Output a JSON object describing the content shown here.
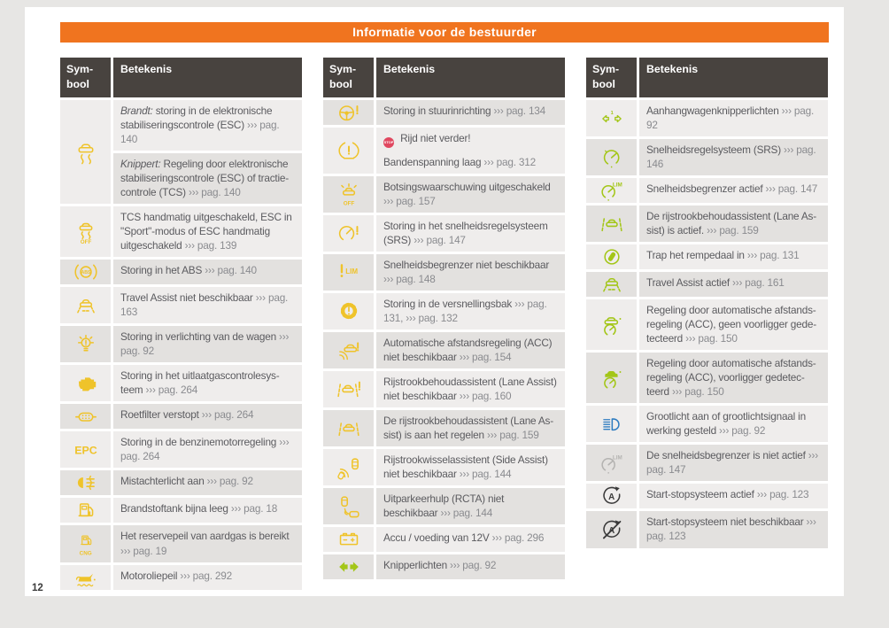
{
  "page": {
    "title": "Informatie voor de bestuurder",
    "page_number": "12",
    "stop_badge_label": "STOP",
    "colors": {
      "accent": "#f0741f",
      "header": "#48433f",
      "warn": "#efc32a",
      "green": "#a3c618",
      "blue": "#2e7cc0",
      "gray": "#b4b3b1",
      "dark": "#3a3a3a",
      "stop_red": "#e0475f",
      "row_light": "#efedec",
      "row_dark": "#e3e1df",
      "text": "#5b5b5f",
      "ref": "#8a8b8f"
    }
  },
  "tables": [
    {
      "headers": {
        "symbol": "Sym-bool",
        "meaning": "Betekenis"
      },
      "rows": [
        {
          "icon": "esc",
          "color": "warn",
          "cells": [
            [
              [
                {
                  "k": "i",
                  "t": "Brandt:"
                },
                {
                  "k": "n",
                  "t": " storing in de elektronische stabi­liseringscontrole (ESC) "
                },
                {
                  "k": "r",
                  "t": "››› pag. 140"
                }
              ]
            ],
            [
              [
                {
                  "k": "i",
                  "t": "Knippert:"
                },
                {
                  "k": "n",
                  "t": " Regeling door elektronische stabiliseringscontrole (ESC) of tractie­controle (TCS) "
                },
                {
                  "k": "r",
                  "t": "››› pag. 140"
                }
              ]
            ]
          ]
        },
        {
          "icon": "esc-off",
          "color": "warn",
          "cells": [
            [
              [
                {
                  "k": "n",
                  "t": "TCS handmatig uitgeschakeld, ESC in \"Sport\"-modus of ESC handmatig uitge­schakeld "
                },
                {
                  "k": "r",
                  "t": "››› pag. 139"
                }
              ]
            ]
          ]
        },
        {
          "icon": "abs",
          "color": "warn",
          "cells": [
            [
              [
                {
                  "k": "n",
                  "t": "Storing in het ABS "
                },
                {
                  "k": "r",
                  "t": "››› pag. 140"
                }
              ]
            ]
          ]
        },
        {
          "icon": "travel-assist",
          "color": "warn",
          "cells": [
            [
              [
                {
                  "k": "n",
                  "t": "Travel Assist niet beschikbaar "
                },
                {
                  "k": "r",
                  "t": "››› pag. 163"
                }
              ]
            ]
          ]
        },
        {
          "icon": "bulb-fault",
          "color": "warn",
          "cells": [
            [
              [
                {
                  "k": "n",
                  "t": "Storing in verlichting van de wagen "
                },
                {
                  "k": "r",
                  "t": "››› pag. 92"
                }
              ]
            ]
          ]
        },
        {
          "icon": "engine",
          "color": "warn",
          "cells": [
            [
              [
                {
                  "k": "n",
                  "t": "Storing in het uitlaatgascontrolesys­teem "
                },
                {
                  "k": "r",
                  "t": "››› pag. 264"
                }
              ]
            ]
          ]
        },
        {
          "icon": "dpf",
          "color": "warn",
          "cells": [
            [
              [
                {
                  "k": "n",
                  "t": "Roetfilter verstopt "
                },
                {
                  "k": "r",
                  "t": "››› pag. 264"
                }
              ]
            ]
          ]
        },
        {
          "icon": "epc",
          "color": "warn",
          "cells": [
            [
              [
                {
                  "k": "n",
                  "t": "Storing in de benzinemotorregeling "
                },
                {
                  "k": "r",
                  "t": "››› pag. 264"
                }
              ]
            ]
          ]
        },
        {
          "icon": "rear-fog",
          "color": "warn",
          "cells": [
            [
              [
                {
                  "k": "n",
                  "t": "Mistachterlicht aan "
                },
                {
                  "k": "r",
                  "t": "››› pag. 92"
                }
              ]
            ]
          ]
        },
        {
          "icon": "fuel",
          "color": "warn",
          "cells": [
            [
              [
                {
                  "k": "n",
                  "t": "Brandstoftank bijna leeg "
                },
                {
                  "k": "r",
                  "t": "››› pag. 18"
                }
              ]
            ]
          ]
        },
        {
          "icon": "fuel-cng",
          "color": "warn",
          "cells": [
            [
              [
                {
                  "k": "n",
                  "t": "Het reservepeil van aardgas is bereikt "
                },
                {
                  "k": "r",
                  "t": "››› pag. 19"
                }
              ]
            ]
          ]
        },
        {
          "icon": "oil",
          "color": "warn",
          "cells": [
            [
              [
                {
                  "k": "n",
                  "t": "Motoroliepeil "
                },
                {
                  "k": "r",
                  "t": "››› pag. 292"
                }
              ]
            ]
          ]
        }
      ]
    },
    {
      "headers": {
        "symbol": "Sym-bool",
        "meaning": "Betekenis"
      },
      "rows": [
        {
          "icon": "steering-warn",
          "color": "warn",
          "cells": [
            [
              [
                {
                  "k": "n",
                  "t": "Storing in stuurinrichting "
                },
                {
                  "k": "r",
                  "t": "››› pag. 134"
                }
              ]
            ]
          ]
        },
        {
          "icon": "tpms",
          "color": "warn",
          "cells": [
            [
              [
                {
                  "k": "b",
                  "t": "STOP"
                },
                {
                  "k": "n",
                  "t": " Rijd niet verder!"
                }
              ],
              [
                {
                  "k": "n",
                  "t": "Bandenspanning laag "
                },
                {
                  "k": "r",
                  "t": "››› pag. 312"
                }
              ]
            ]
          ]
        },
        {
          "icon": "front-assist-off",
          "color": "warn",
          "cells": [
            [
              [
                {
                  "k": "n",
                  "t": "Botsingswaarschuwing uitgeschakeld "
                },
                {
                  "k": "r",
                  "t": "››› pag. 157"
                }
              ]
            ]
          ]
        },
        {
          "icon": "cruise-fault",
          "color": "warn",
          "cells": [
            [
              [
                {
                  "k": "n",
                  "t": "Storing in het snelheidsregelsysteem (SRS) "
                },
                {
                  "k": "r",
                  "t": "››› pag. 147"
                }
              ]
            ]
          ]
        },
        {
          "icon": "lim-warn",
          "color": "warn",
          "cells": [
            [
              [
                {
                  "k": "n",
                  "t": "Snelheidsbegrenzer niet beschikbaar "
                },
                {
                  "k": "r",
                  "t": "››› pag. 148"
                }
              ]
            ]
          ]
        },
        {
          "icon": "gearbox-warn",
          "color": "warn",
          "cells": [
            [
              [
                {
                  "k": "n",
                  "t": "Storing in de versnellingsbak "
                },
                {
                  "k": "r",
                  "t": "››› pag. 131, ››› pag. 132"
                }
              ]
            ]
          ]
        },
        {
          "icon": "acc-warn",
          "color": "warn",
          "cells": [
            [
              [
                {
                  "k": "n",
                  "t": "Automatische afstandsregeling (ACC) niet beschikbaar "
                },
                {
                  "k": "r",
                  "t": "››› pag. 154"
                }
              ]
            ]
          ]
        },
        {
          "icon": "lane-assist-warn",
          "color": "warn",
          "cells": [
            [
              [
                {
                  "k": "n",
                  "t": "Rijstrookbehoudassistent (Lane Assist) niet beschikbaar "
                },
                {
                  "k": "r",
                  "t": "››› pag. 160"
                }
              ]
            ]
          ]
        },
        {
          "icon": "lane-assist",
          "color": "warn",
          "cells": [
            [
              [
                {
                  "k": "n",
                  "t": "De rijstrookbehoudassistent (Lane As­sist) is aan het regelen "
                },
                {
                  "k": "r",
                  "t": "››› pag. 159"
                }
              ]
            ]
          ]
        },
        {
          "icon": "side-assist",
          "color": "warn",
          "cells": [
            [
              [
                {
                  "k": "n",
                  "t": "Rijstrookwisselassistent (Side Assist) niet beschikbaar "
                },
                {
                  "k": "r",
                  "t": "››› pag. 144"
                }
              ]
            ]
          ]
        },
        {
          "icon": "rcta",
          "color": "warn",
          "cells": [
            [
              [
                {
                  "k": "n",
                  "t": "Uitparkeerhulp (RCTA) niet beschikbaar "
                },
                {
                  "k": "r",
                  "t": "››› pag. 144"
                }
              ]
            ]
          ]
        },
        {
          "icon": "battery",
          "color": "warn",
          "cells": [
            [
              [
                {
                  "k": "n",
                  "t": "Accu / voeding van 12V "
                },
                {
                  "k": "r",
                  "t": "››› pag. 296"
                }
              ]
            ]
          ]
        },
        {
          "icon": "turn-signals",
          "color": "green",
          "cells": [
            [
              [
                {
                  "k": "n",
                  "t": "Knipperlichten "
                },
                {
                  "k": "r",
                  "t": "››› pag. 92"
                }
              ]
            ]
          ]
        }
      ]
    },
    {
      "headers": {
        "symbol": "Sym-bool",
        "meaning": "Betekenis"
      },
      "rows": [
        {
          "icon": "trailer-turn",
          "color": "green",
          "cells": [
            [
              [
                {
                  "k": "n",
                  "t": "Aanhangwagenknipperlichten "
                },
                {
                  "k": "r",
                  "t": "››› pag. 92"
                }
              ]
            ]
          ]
        },
        {
          "icon": "cruise-active",
          "color": "green",
          "cells": [
            [
              [
                {
                  "k": "n",
                  "t": "Snelheidsregelsysteem (SRS) "
                },
                {
                  "k": "r",
                  "t": "››› pag. 146"
                }
              ]
            ]
          ]
        },
        {
          "icon": "lim",
          "color": "green",
          "cells": [
            [
              [
                {
                  "k": "n",
                  "t": "Snelheidsbegrenzer actief "
                },
                {
                  "k": "r",
                  "t": "››› pag. 147"
                }
              ]
            ]
          ]
        },
        {
          "icon": "lane-assist",
          "color": "green",
          "cells": [
            [
              [
                {
                  "k": "n",
                  "t": "De rijstrookbehoudassistent (Lane As­sist) is actief. "
                },
                {
                  "k": "r",
                  "t": "››› pag. 159"
                }
              ]
            ]
          ]
        },
        {
          "icon": "brake-pedal",
          "color": "green",
          "cells": [
            [
              [
                {
                  "k": "n",
                  "t": "Trap het rempedaal in "
                },
                {
                  "k": "r",
                  "t": "››› pag. 131"
                }
              ]
            ]
          ]
        },
        {
          "icon": "travel-assist",
          "color": "green",
          "cells": [
            [
              [
                {
                  "k": "n",
                  "t": "Travel Assist actief "
                },
                {
                  "k": "r",
                  "t": "››› pag. 161"
                }
              ]
            ]
          ]
        },
        {
          "icon": "acc-car",
          "color": "green",
          "cells": [
            [
              [
                {
                  "k": "n",
                  "t": "Regeling door automatische afstands­regeling (ACC), geen voorligger gede­tecteerd "
                },
                {
                  "k": "r",
                  "t": "››› pag. 150"
                }
              ]
            ]
          ]
        },
        {
          "icon": "acc-car-filled",
          "color": "green",
          "cells": [
            [
              [
                {
                  "k": "n",
                  "t": "Regeling door automatische afstands­regeling (ACC), voorligger gedetec­teerd "
                },
                {
                  "k": "r",
                  "t": "››› pag. 150"
                }
              ]
            ]
          ]
        },
        {
          "icon": "high-beam",
          "color": "blue",
          "cells": [
            [
              [
                {
                  "k": "n",
                  "t": "Grootlicht aan of grootlichtsignaal in werking gesteld "
                },
                {
                  "k": "r",
                  "t": "››› pag. 92"
                }
              ]
            ]
          ]
        },
        {
          "icon": "lim",
          "color": "gray",
          "cells": [
            [
              [
                {
                  "k": "n",
                  "t": "De snelheidsbegrenzer is niet actief "
                },
                {
                  "k": "r",
                  "t": "››› pag. 147"
                }
              ]
            ]
          ]
        },
        {
          "icon": "start-stop",
          "color": "dark",
          "cells": [
            [
              [
                {
                  "k": "n",
                  "t": "Start-stopsysteem actief "
                },
                {
                  "k": "r",
                  "t": "››› pag. 123"
                }
              ]
            ]
          ]
        },
        {
          "icon": "start-stop-off",
          "color": "dark",
          "cells": [
            [
              [
                {
                  "k": "n",
                  "t": "Start-stopsysteem niet beschikbaar "
                },
                {
                  "k": "r",
                  "t": "››› pag. 123"
                }
              ]
            ]
          ]
        }
      ]
    }
  ]
}
